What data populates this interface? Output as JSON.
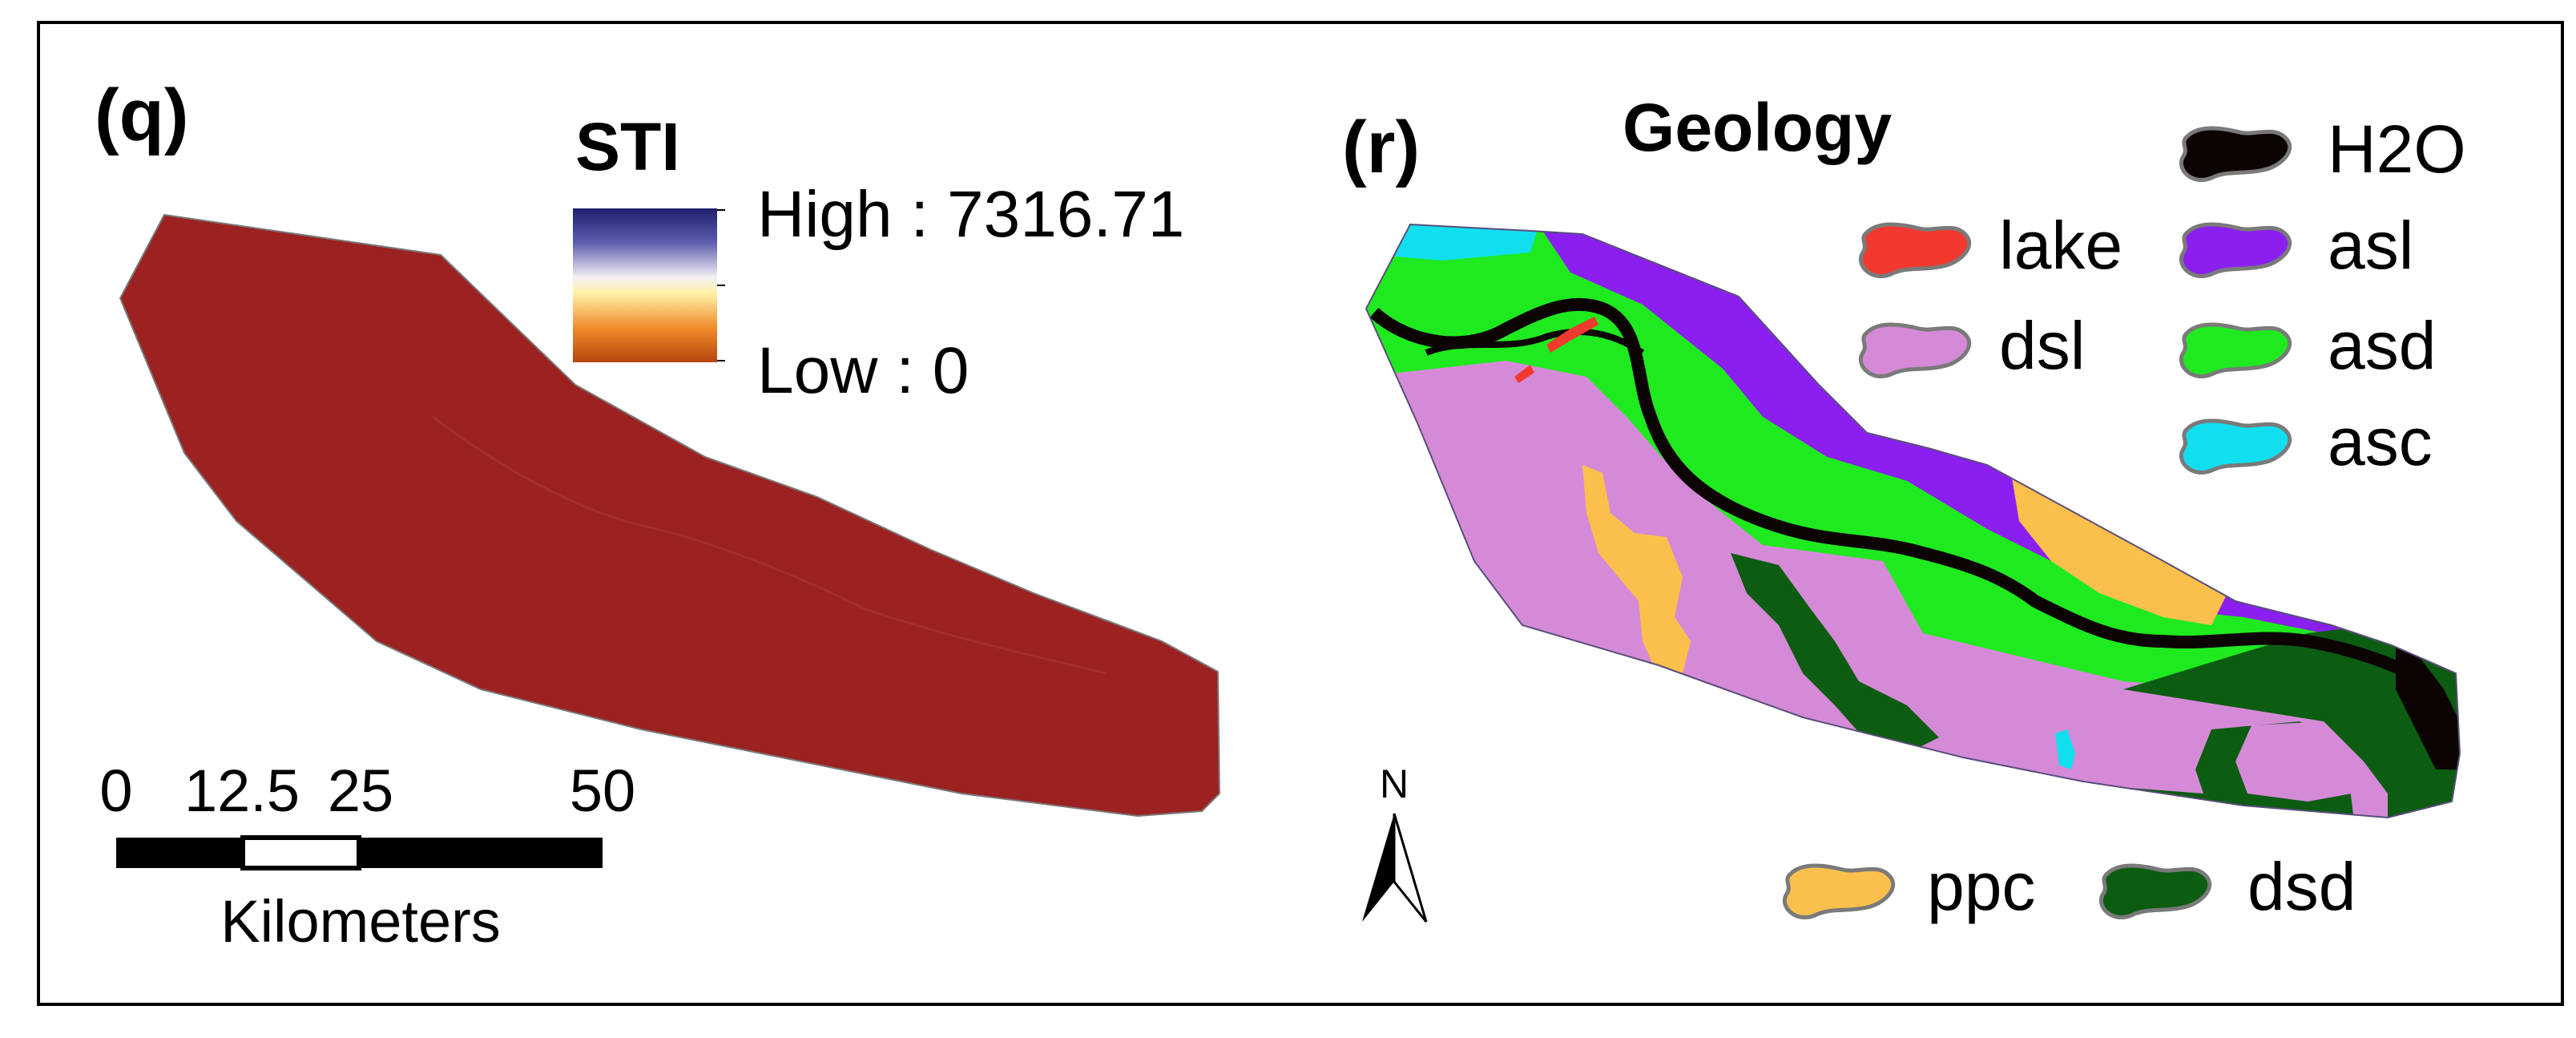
{
  "panel_q": {
    "label": "(q)",
    "legend_title": "STI",
    "high_label": "High : 7316.71",
    "low_label": "Low : 0",
    "gradient_colors": [
      "#1f1f6e",
      "#5c5cae",
      "#f4f0f4",
      "#fff2a8",
      "#f08a2a",
      "#b2470e"
    ],
    "fill_color": "#9b2221",
    "scale_bar": {
      "ticks": [
        "0",
        "12.5",
        "25",
        "50"
      ],
      "unit": "Kilometers"
    }
  },
  "panel_r": {
    "label": "(r)",
    "legend_title": "Geology",
    "north_label": "N",
    "legend": [
      {
        "key": "lake",
        "label": "lake",
        "color": "#f2392f"
      },
      {
        "key": "dsl",
        "label": "dsl",
        "color": "#d58ad8"
      },
      {
        "key": "h2o",
        "label": "H2O",
        "color": "#0b0403"
      },
      {
        "key": "asl",
        "label": "asl",
        "color": "#8b1ff0"
      },
      {
        "key": "asd",
        "label": "asd",
        "color": "#1fea1f"
      },
      {
        "key": "asc",
        "label": "asc",
        "color": "#11dff0"
      },
      {
        "key": "ppc",
        "label": "ppc",
        "color": "#fbc04c"
      },
      {
        "key": "dsd",
        "label": "dsd",
        "color": "#0c5c12"
      }
    ]
  }
}
